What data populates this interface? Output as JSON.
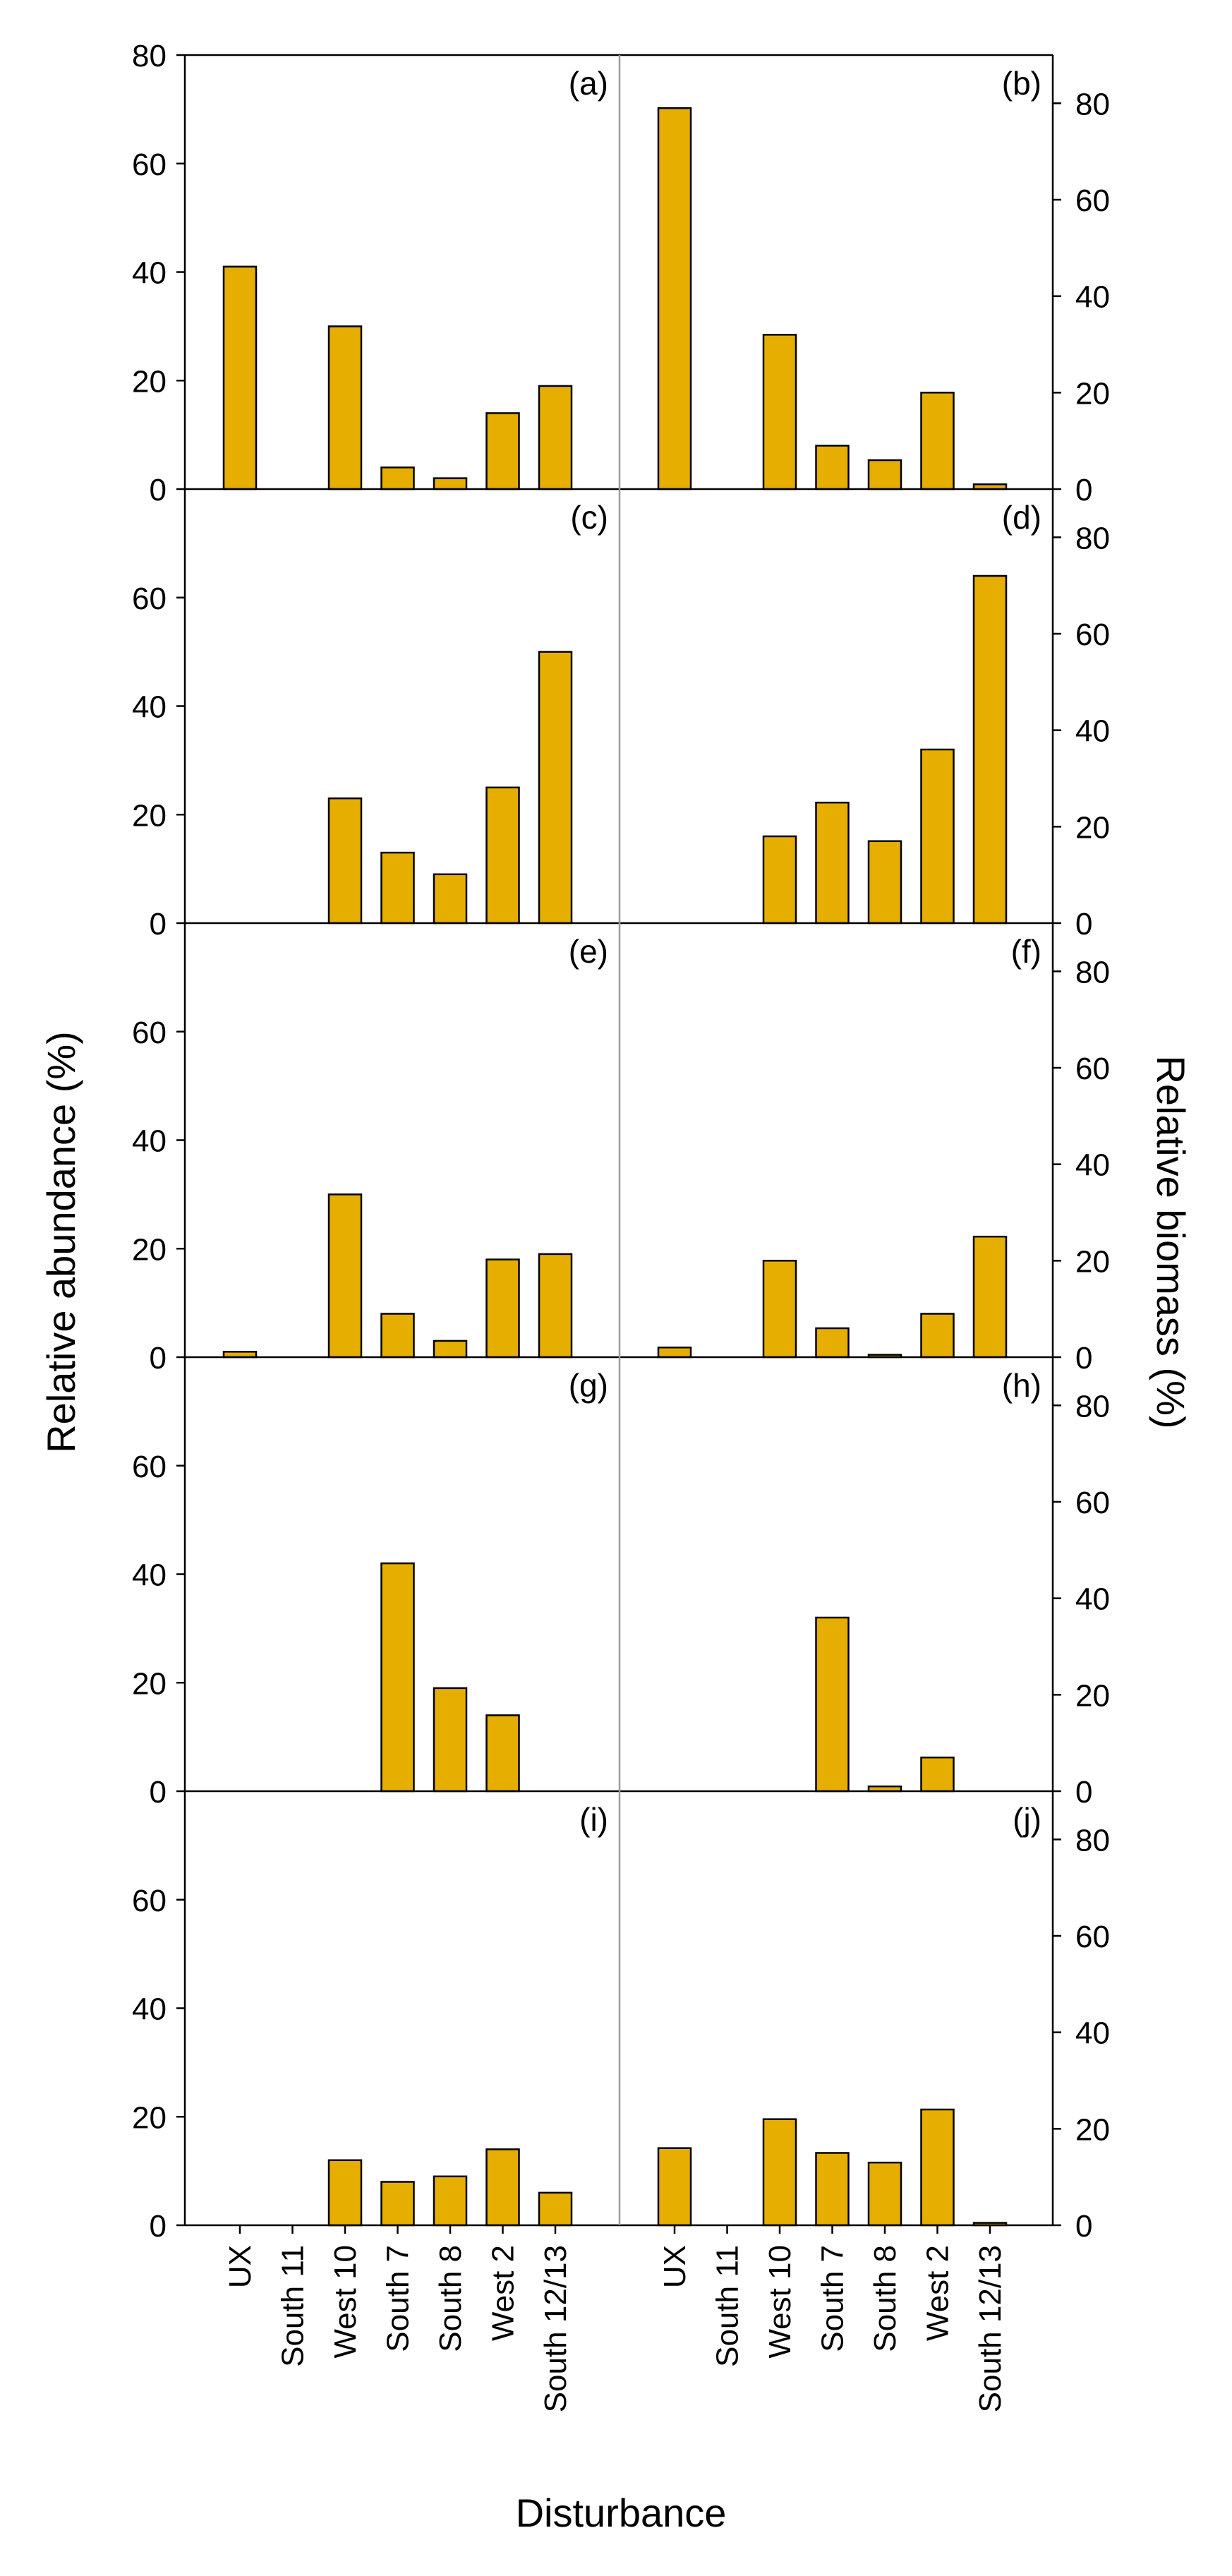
{
  "colors": {
    "bar": "#E6AE00",
    "edge": "#000000",
    "divider": "#9a9a9a"
  },
  "figure": {
    "xlabel": "Disturbance",
    "ylabel_left": "Relative abundance (%)",
    "ylabel_right": "Relative biomass (%)"
  },
  "chart_data": [
    {
      "type": "bar",
      "panel": "(a)",
      "title": "(a)",
      "ylabel": "Relative abundance (%)",
      "ylim": [
        0,
        80
      ],
      "yticks": [
        0,
        20,
        40,
        60,
        80
      ],
      "categories": [
        "UX",
        "South 11",
        "West 10",
        "South 7",
        "South 8",
        "West 2",
        "South 12/13"
      ],
      "values": [
        41,
        0,
        30,
        4,
        2,
        14,
        19
      ]
    },
    {
      "type": "bar",
      "panel": "(b)",
      "title": "(b)",
      "ylabel": "Relative biomass (%)",
      "ylim": [
        0,
        90
      ],
      "yticks": [
        0,
        20,
        40,
        60,
        80
      ],
      "categories": [
        "UX",
        "South 11",
        "West 10",
        "South 7",
        "South 8",
        "West 2",
        "South 12/13"
      ],
      "values": [
        79,
        0,
        32,
        9,
        6,
        20,
        1
      ]
    },
    {
      "type": "bar",
      "panel": "(c)",
      "title": "(c)",
      "ylabel": "Relative abundance (%)",
      "ylim": [
        0,
        80
      ],
      "yticks": [
        0,
        20,
        40,
        60
      ],
      "categories": [
        "UX",
        "South 11",
        "West 10",
        "South 7",
        "South 8",
        "West 2",
        "South 12/13"
      ],
      "values": [
        0,
        0,
        23,
        13,
        9,
        25,
        50
      ]
    },
    {
      "type": "bar",
      "panel": "(d)",
      "title": "(d)",
      "ylabel": "Relative biomass (%)",
      "ylim": [
        0,
        90
      ],
      "yticks": [
        0,
        20,
        40,
        60,
        80
      ],
      "categories": [
        "UX",
        "South 11",
        "West 10",
        "South 7",
        "South 8",
        "West 2",
        "South 12/13"
      ],
      "values": [
        0,
        0,
        18,
        25,
        17,
        36,
        72
      ]
    },
    {
      "type": "bar",
      "panel": "(e)",
      "title": "(e)",
      "ylabel": "Relative abundance (%)",
      "ylim": [
        0,
        80
      ],
      "yticks": [
        0,
        20,
        40,
        60
      ],
      "categories": [
        "UX",
        "South 11",
        "West 10",
        "South 7",
        "South 8",
        "West 2",
        "South 12/13"
      ],
      "values": [
        1,
        0,
        30,
        8,
        3,
        18,
        19
      ]
    },
    {
      "type": "bar",
      "panel": "(f)",
      "title": "(f)",
      "ylabel": "Relative biomass (%)",
      "ylim": [
        0,
        90
      ],
      "yticks": [
        0,
        20,
        40,
        60,
        80
      ],
      "categories": [
        "UX",
        "South 11",
        "West 10",
        "South 7",
        "South 8",
        "West 2",
        "South 12/13"
      ],
      "values": [
        2,
        0,
        20,
        6,
        0.5,
        9,
        25
      ]
    },
    {
      "type": "bar",
      "panel": "(g)",
      "title": "(g)",
      "ylabel": "Relative abundance (%)",
      "ylim": [
        0,
        80
      ],
      "yticks": [
        0,
        20,
        40,
        60
      ],
      "categories": [
        "UX",
        "South 11",
        "West 10",
        "South 7",
        "South 8",
        "West 2",
        "South 12/13"
      ],
      "values": [
        0,
        0,
        0,
        42,
        19,
        14,
        0
      ]
    },
    {
      "type": "bar",
      "panel": "(h)",
      "title": "(h)",
      "ylabel": "Relative biomass (%)",
      "ylim": [
        0,
        90
      ],
      "yticks": [
        0,
        20,
        40,
        60,
        80
      ],
      "categories": [
        "UX",
        "South 11",
        "West 10",
        "South 7",
        "South 8",
        "West 2",
        "South 12/13"
      ],
      "values": [
        0,
        0,
        0,
        36,
        1,
        7,
        0
      ]
    },
    {
      "type": "bar",
      "panel": "(i)",
      "title": "(i)",
      "ylabel": "Relative abundance (%)",
      "ylim": [
        0,
        80
      ],
      "yticks": [
        0,
        20,
        40,
        60
      ],
      "categories": [
        "UX",
        "South 11",
        "West 10",
        "South 7",
        "South 8",
        "West 2",
        "South 12/13"
      ],
      "values": [
        0,
        0,
        12,
        8,
        9,
        14,
        6
      ]
    },
    {
      "type": "bar",
      "panel": "(j)",
      "title": "(j)",
      "ylabel": "Relative biomass (%)",
      "ylim": [
        0,
        90
      ],
      "yticks": [
        0,
        20,
        40,
        60,
        80
      ],
      "categories": [
        "UX",
        "South 11",
        "West 10",
        "South 7",
        "South 8",
        "West 2",
        "South 12/13"
      ],
      "values": [
        16,
        0,
        22,
        15,
        13,
        24,
        0.5
      ]
    }
  ]
}
